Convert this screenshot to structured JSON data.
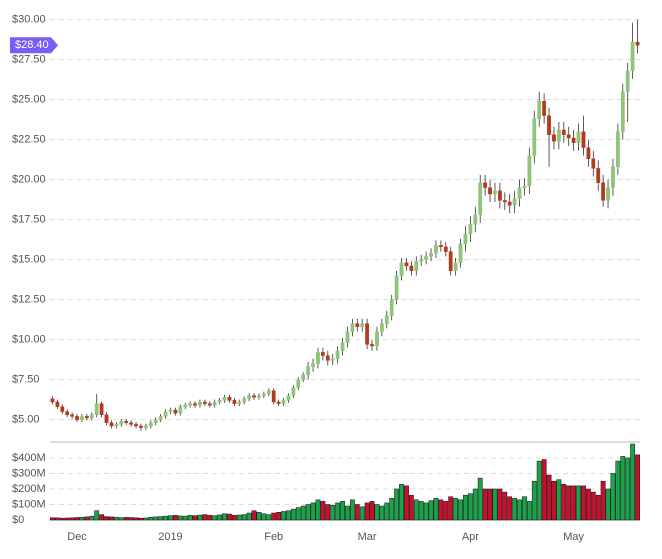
{
  "chart_data": {
    "type": "candlestick",
    "categories": [
      null,
      null,
      null,
      null,
      null,
      "Dec",
      null,
      null,
      null,
      null,
      null,
      null,
      null,
      null,
      null,
      null,
      null,
      null,
      null,
      null,
      null,
      null,
      null,
      null,
      "2019",
      null,
      null,
      null,
      null,
      null,
      null,
      null,
      null,
      null,
      null,
      null,
      null,
      null,
      null,
      null,
      null,
      null,
      null,
      null,
      null,
      "Feb",
      null,
      null,
      null,
      null,
      null,
      null,
      null,
      null,
      null,
      null,
      null,
      null,
      null,
      null,
      null,
      null,
      null,
      null,
      "Mar",
      null,
      null,
      null,
      null,
      null,
      null,
      null,
      null,
      null,
      null,
      null,
      null,
      null,
      null,
      null,
      null,
      null,
      null,
      null,
      null,
      "Apr",
      null,
      null,
      null,
      null,
      null,
      null,
      null,
      null,
      null,
      null,
      null,
      null,
      null,
      null,
      null,
      null,
      null,
      null,
      null,
      null,
      "May",
      null,
      null,
      null,
      null,
      null,
      null,
      null,
      null,
      null,
      null,
      null,
      null,
      null
    ],
    "open": [
      6.3,
      6.1,
      5.8,
      5.5,
      5.3,
      5.2,
      5.0,
      5.2,
      5.1,
      5.3,
      6.0,
      5.3,
      4.8,
      4.6,
      4.7,
      4.9,
      4.8,
      4.7,
      4.6,
      4.5,
      4.6,
      4.8,
      5.0,
      5.2,
      5.5,
      5.6,
      5.4,
      5.8,
      5.9,
      6.0,
      5.9,
      6.1,
      6.0,
      5.9,
      6.1,
      6.2,
      6.4,
      6.2,
      6.0,
      6.1,
      6.3,
      6.5,
      6.4,
      6.5,
      6.6,
      6.8,
      6.1,
      6.0,
      6.2,
      6.5,
      7.0,
      7.5,
      7.8,
      8.3,
      8.5,
      9.2,
      9.0,
      8.7,
      8.8,
      9.3,
      9.8,
      10.5,
      11.0,
      10.8,
      11.0,
      9.7,
      9.6,
      10.5,
      11.0,
      11.5,
      12.5,
      14.0,
      14.8,
      14.6,
      14.3,
      14.9,
      15.0,
      15.2,
      15.4,
      15.9,
      15.8,
      15.5,
      14.3,
      14.8,
      16.0,
      16.6,
      17.2,
      17.8,
      19.8,
      19.5,
      19.1,
      19.3,
      18.7,
      18.6,
      18.4,
      18.8,
      19.5,
      19.6,
      21.5,
      23.8,
      24.9,
      24.0,
      22.8,
      22.4,
      23.1,
      22.8,
      22.6,
      22.3,
      23.0,
      22.0,
      21.3,
      20.7,
      19.8,
      18.7,
      19.5,
      20.8,
      23.0,
      25.5,
      26.8,
      28.6
    ],
    "high": [
      6.45,
      6.25,
      5.95,
      5.65,
      5.45,
      5.35,
      5.35,
      5.35,
      5.45,
      6.6,
      6.15,
      5.45,
      4.95,
      4.85,
      5.05,
      5.05,
      4.95,
      4.85,
      4.75,
      4.75,
      4.95,
      5.15,
      5.35,
      5.65,
      5.75,
      5.75,
      5.95,
      6.05,
      6.15,
      6.15,
      6.25,
      6.25,
      6.15,
      6.25,
      6.35,
      6.55,
      6.55,
      6.35,
      6.25,
      6.45,
      6.65,
      6.65,
      6.65,
      6.75,
      6.95,
      6.95,
      6.25,
      6.35,
      6.65,
      7.15,
      7.65,
      7.95,
      8.6,
      8.8,
      9.5,
      9.5,
      9.3,
      9.1,
      9.6,
      10.1,
      10.8,
      11.3,
      11.3,
      11.3,
      11.3,
      10.0,
      10.8,
      11.3,
      11.8,
      12.8,
      14.3,
      15.1,
      15.1,
      14.9,
      15.2,
      15.3,
      15.5,
      15.7,
      16.2,
      16.2,
      16.1,
      15.8,
      15.1,
      16.3,
      17.1,
      17.7,
      18.3,
      20.3,
      20.3,
      20.0,
      19.8,
      19.8,
      19.2,
      19.1,
      19.3,
      20.0,
      20.1,
      22.0,
      24.3,
      25.5,
      25.4,
      24.5,
      23.3,
      23.6,
      23.6,
      23.3,
      23.1,
      23.5,
      24.0,
      22.5,
      21.8,
      21.2,
      20.3,
      20.0,
      21.3,
      23.5,
      26.0,
      27.3,
      29.8,
      30.0
    ],
    "low": [
      5.95,
      5.65,
      5.35,
      5.15,
      5.05,
      4.85,
      4.85,
      4.95,
      4.95,
      5.15,
      5.15,
      4.65,
      4.45,
      4.45,
      4.55,
      4.65,
      4.55,
      4.45,
      4.3,
      4.35,
      4.45,
      4.65,
      4.85,
      5.05,
      5.35,
      5.25,
      5.25,
      5.65,
      5.75,
      5.75,
      5.75,
      5.85,
      5.75,
      5.75,
      5.95,
      6.05,
      6.05,
      5.85,
      5.85,
      5.95,
      6.15,
      6.25,
      6.25,
      6.35,
      6.45,
      5.95,
      5.85,
      5.85,
      6.05,
      6.35,
      6.85,
      7.35,
      7.5,
      8.0,
      8.2,
      8.7,
      8.4,
      8.4,
      8.5,
      9.0,
      9.5,
      10.2,
      10.5,
      10.5,
      9.4,
      9.3,
      9.3,
      10.2,
      10.7,
      11.2,
      12.2,
      13.7,
      14.3,
      14.0,
      14.0,
      14.6,
      14.7,
      14.9,
      15.1,
      15.5,
      15.2,
      14.0,
      14.0,
      14.5,
      15.5,
      16.1,
      16.7,
      17.3,
      19.0,
      18.6,
      18.6,
      18.2,
      18.1,
      17.9,
      17.9,
      18.3,
      19.0,
      19.1,
      21.0,
      23.3,
      23.5,
      20.8,
      21.9,
      21.9,
      22.3,
      22.1,
      21.8,
      21.8,
      21.5,
      20.8,
      20.2,
      19.3,
      18.3,
      18.2,
      19.0,
      20.3,
      22.5,
      23.6,
      26.3,
      27.9
    ],
    "close": [
      6.1,
      5.8,
      5.5,
      5.3,
      5.2,
      5.0,
      5.2,
      5.1,
      5.3,
      6.0,
      5.3,
      4.8,
      4.6,
      4.7,
      4.9,
      4.8,
      4.7,
      4.6,
      4.5,
      4.6,
      4.8,
      5.0,
      5.2,
      5.5,
      5.6,
      5.4,
      5.8,
      5.9,
      6.0,
      5.9,
      6.1,
      6.0,
      5.9,
      6.1,
      6.2,
      6.4,
      6.2,
      6.0,
      6.1,
      6.3,
      6.5,
      6.4,
      6.5,
      6.6,
      6.8,
      6.1,
      6.0,
      6.2,
      6.5,
      7.0,
      7.5,
      7.8,
      8.3,
      8.5,
      9.2,
      9.0,
      8.7,
      8.8,
      9.3,
      9.8,
      10.5,
      11.0,
      10.8,
      11.0,
      9.7,
      9.6,
      10.5,
      11.0,
      11.5,
      12.5,
      14.0,
      14.8,
      14.6,
      14.3,
      14.9,
      15.0,
      15.2,
      15.4,
      15.9,
      15.8,
      15.5,
      14.3,
      14.8,
      16.0,
      16.6,
      17.2,
      17.8,
      19.8,
      19.5,
      19.1,
      19.3,
      18.7,
      18.6,
      18.4,
      18.8,
      19.5,
      19.6,
      21.5,
      23.8,
      24.9,
      24.0,
      22.8,
      22.4,
      23.1,
      22.8,
      22.6,
      22.3,
      23.0,
      22.0,
      21.3,
      20.7,
      19.8,
      18.7,
      19.5,
      20.8,
      23.0,
      25.5,
      26.8,
      28.6,
      28.4
    ],
    "volume": [
      15000000,
      14000000,
      12000000,
      13000000,
      14000000,
      16000000,
      18000000,
      20000000,
      25000000,
      60000000,
      35000000,
      22000000,
      20000000,
      18000000,
      15000000,
      17000000,
      16000000,
      14000000,
      12000000,
      13000000,
      18000000,
      20000000,
      22000000,
      25000000,
      28000000,
      30000000,
      26000000,
      25000000,
      30000000,
      28000000,
      32000000,
      35000000,
      30000000,
      28000000,
      33000000,
      40000000,
      38000000,
      30000000,
      32000000,
      35000000,
      45000000,
      60000000,
      50000000,
      40000000,
      35000000,
      45000000,
      50000000,
      55000000,
      60000000,
      70000000,
      80000000,
      90000000,
      100000000,
      110000000,
      130000000,
      120000000,
      100000000,
      95000000,
      110000000,
      120000000,
      90000000,
      130000000,
      100000000,
      85000000,
      110000000,
      120000000,
      100000000,
      90000000,
      110000000,
      140000000,
      200000000,
      230000000,
      220000000,
      160000000,
      130000000,
      120000000,
      110000000,
      125000000,
      140000000,
      130000000,
      120000000,
      150000000,
      140000000,
      130000000,
      160000000,
      170000000,
      200000000,
      270000000,
      200000000,
      200000000,
      200000000,
      200000000,
      180000000,
      150000000,
      140000000,
      130000000,
      150000000,
      120000000,
      250000000,
      380000000,
      390000000,
      290000000,
      250000000,
      260000000,
      230000000,
      220000000,
      220000000,
      220000000,
      220000000,
      200000000,
      180000000,
      160000000,
      250000000,
      200000000,
      300000000,
      380000000,
      410000000,
      400000000,
      490000000,
      420000000
    ],
    "ylim": [
      3.6,
      30.6
    ],
    "yticks": [
      {
        "value": 5,
        "label": "$5.00"
      },
      {
        "value": 7.5,
        "label": "$7.50"
      },
      {
        "value": 10,
        "label": "$10.00"
      },
      {
        "value": 12.5,
        "label": "$12.50"
      },
      {
        "value": 15,
        "label": "$15.00"
      },
      {
        "value": 17.5,
        "label": "$17.50"
      },
      {
        "value": 20,
        "label": "$20.00"
      },
      {
        "value": 22.5,
        "label": "$22.50"
      },
      {
        "value": 25,
        "label": "$25.00"
      },
      {
        "value": 27.5,
        "label": "$27.50"
      },
      {
        "value": 30,
        "label": "$30.00"
      }
    ],
    "y2lim": [
      0,
      490000000
    ],
    "y2ticks": [
      {
        "value": 0,
        "label": "$0"
      },
      {
        "value": 100000000,
        "label": "$100M"
      },
      {
        "value": 200000000,
        "label": "$200M"
      },
      {
        "value": 300000000,
        "label": "$300M"
      },
      {
        "value": 400000000,
        "label": "$400M"
      }
    ],
    "last_price": {
      "value": 28.4,
      "label": "$28.40"
    },
    "grid": true,
    "up_color": "#8fc47a",
    "down_color": "#b5391c",
    "volume_up_color": "#1aa34a",
    "volume_down_color": "#c8102e",
    "badge_color": "#7b5cf5"
  }
}
